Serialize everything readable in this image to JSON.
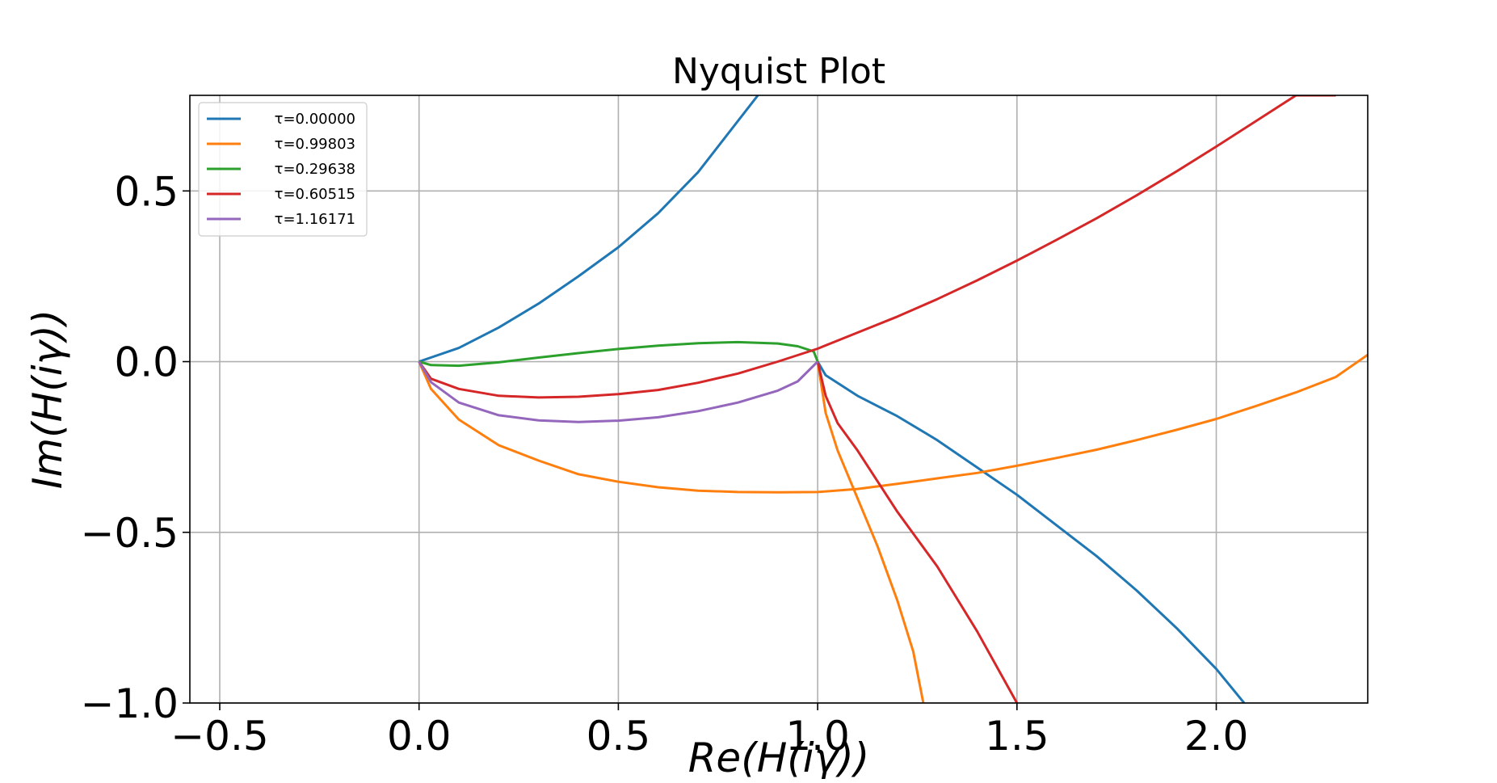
{
  "chart_data": {
    "type": "line",
    "title": "Nyquist Plot",
    "xlabel": "Re(H(iγ))",
    "ylabel": "Im(H(iγ))",
    "xlim": [
      -0.575,
      2.38
    ],
    "ylim": [
      -1.0,
      0.78
    ],
    "xticks": [
      -0.5,
      0.0,
      0.5,
      1.0,
      1.5,
      2.0
    ],
    "xtick_labels": [
      "−0.5",
      "0.0",
      "0.5",
      "1.0",
      "1.5",
      "2.0"
    ],
    "yticks": [
      -1.0,
      -0.5,
      0.0,
      0.5
    ],
    "ytick_labels": [
      "−1.0",
      "−0.5",
      "0.0",
      "0.5"
    ],
    "grid": true,
    "legend_position": "top-left",
    "series": [
      {
        "name": "τ=0.00000",
        "color": "#1f77b4",
        "x": [
          0.0,
          0.1,
          0.2,
          0.3,
          0.4,
          0.5,
          0.6,
          0.7,
          0.85,
          null,
          1.0,
          1.02,
          1.1,
          1.2,
          1.3,
          1.4,
          1.5,
          1.6,
          1.7,
          1.8,
          1.9,
          2.0,
          2.07
        ],
        "y": [
          0.0,
          0.04,
          0.1,
          0.17,
          0.25,
          0.335,
          0.435,
          0.555,
          0.78,
          null,
          0.0,
          -0.04,
          -0.1,
          -0.16,
          -0.23,
          -0.31,
          -0.39,
          -0.48,
          -0.57,
          -0.67,
          -0.78,
          -0.9,
          -1.0
        ]
      },
      {
        "name": "τ=0.99803",
        "color": "#ff7f0e",
        "x": [
          0.0,
          0.03,
          0.1,
          0.2,
          0.3,
          0.4,
          0.5,
          0.6,
          0.7,
          0.8,
          0.9,
          1.0,
          1.1,
          1.2,
          1.3,
          1.4,
          1.5,
          1.6,
          1.7,
          1.8,
          1.9,
          2.0,
          2.1,
          2.2,
          2.3,
          2.38,
          null,
          1.0,
          1.02,
          1.05,
          1.1,
          1.15,
          1.2,
          1.24,
          1.265
        ],
        "y": [
          0.0,
          -0.08,
          -0.17,
          -0.245,
          -0.29,
          -0.33,
          -0.352,
          -0.368,
          -0.378,
          -0.382,
          -0.383,
          -0.382,
          -0.373,
          -0.358,
          -0.342,
          -0.326,
          -0.305,
          -0.282,
          -0.258,
          -0.23,
          -0.2,
          -0.168,
          -0.13,
          -0.09,
          -0.045,
          0.02,
          null,
          0.0,
          -0.15,
          -0.26,
          -0.4,
          -0.54,
          -0.7,
          -0.85,
          -1.0
        ]
      },
      {
        "name": "τ=0.29638",
        "color": "#2ca02c",
        "x": [
          0.0,
          0.03,
          0.1,
          0.2,
          0.3,
          0.4,
          0.5,
          0.6,
          0.7,
          0.8,
          0.9,
          0.95,
          0.99,
          1.0
        ],
        "y": [
          0.0,
          -0.01,
          -0.012,
          -0.002,
          0.012,
          0.025,
          0.037,
          0.047,
          0.054,
          0.057,
          0.053,
          0.045,
          0.03,
          0.0
        ]
      },
      {
        "name": "τ=0.60515",
        "color": "#d62728",
        "x": [
          0.0,
          0.03,
          0.1,
          0.2,
          0.3,
          0.4,
          0.5,
          0.6,
          0.7,
          0.8,
          0.9,
          1.0,
          1.1,
          1.2,
          1.3,
          1.4,
          1.5,
          1.6,
          1.7,
          1.8,
          1.9,
          2.0,
          2.1,
          2.2,
          2.3,
          null,
          1.0,
          1.02,
          1.05,
          1.1,
          1.15,
          1.2,
          1.3,
          1.4,
          1.5
        ],
        "y": [
          0.0,
          -0.05,
          -0.08,
          -0.1,
          -0.105,
          -0.103,
          -0.095,
          -0.083,
          -0.062,
          -0.035,
          0.0,
          0.038,
          0.085,
          0.132,
          0.183,
          0.238,
          0.296,
          0.357,
          0.42,
          0.487,
          0.557,
          0.63,
          0.705,
          0.78,
          0.78,
          null,
          0.0,
          -0.1,
          -0.18,
          -0.26,
          -0.35,
          -0.44,
          -0.6,
          -0.79,
          -1.0
        ]
      },
      {
        "name": "τ=1.16171",
        "color": "#9467bd",
        "x": [
          0.0,
          0.03,
          0.1,
          0.2,
          0.3,
          0.4,
          0.5,
          0.6,
          0.7,
          0.8,
          0.9,
          0.95,
          1.0
        ],
        "y": [
          0.0,
          -0.06,
          -0.12,
          -0.157,
          -0.172,
          -0.177,
          -0.173,
          -0.163,
          -0.145,
          -0.12,
          -0.085,
          -0.058,
          0.0
        ]
      }
    ]
  }
}
